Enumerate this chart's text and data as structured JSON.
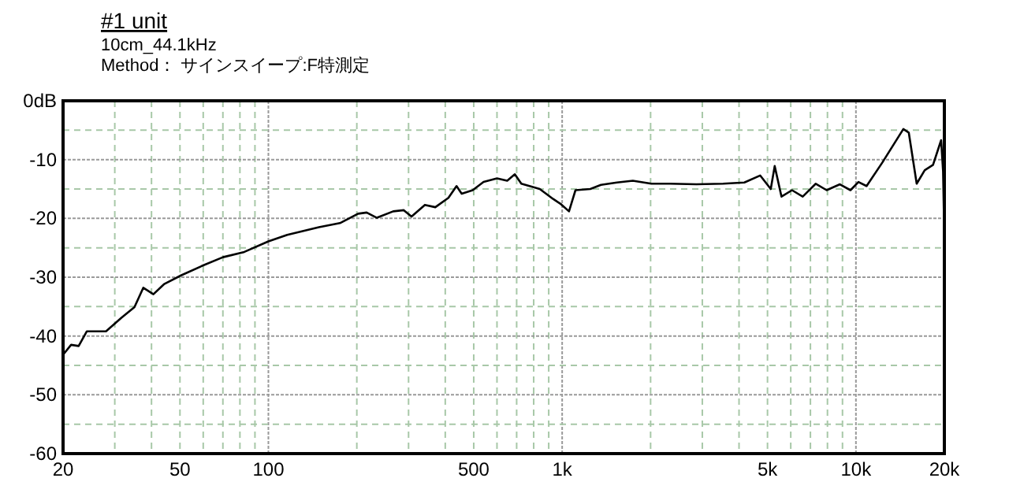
{
  "chart_data": {
    "type": "line",
    "title": "#1 unit",
    "subtitle": "10cm_44.1kHz",
    "annotations": [
      "Method： サインスイープ:F特測定"
    ],
    "log": "x",
    "grid": true,
    "xlim": [
      20,
      20000
    ],
    "ylim": [
      -60,
      0
    ],
    "xticks": [
      20,
      50,
      100,
      500,
      {
        "value": 1000,
        "label": "1k"
      },
      {
        "value": 5000,
        "label": "5k"
      },
      {
        "value": 10000,
        "label": "10k"
      },
      {
        "value": 20000,
        "label": "20k"
      }
    ],
    "yticks": [
      {
        "value": 0,
        "label": "0dB"
      },
      -10,
      -20,
      -30,
      -40,
      -50,
      -60
    ],
    "series": [
      {
        "color": "#000000",
        "marker": "none",
        "line_style": "solid",
        "x": [
          20,
          21.3,
          22.6,
          24.1,
          28,
          31.6,
          35,
          37.5,
          40.6,
          44.1,
          50.4,
          59.3,
          70,
          82.8,
          100,
          115.9,
          148.6,
          175.2,
          202,
          216,
          234,
          266,
          289,
          307,
          341,
          370,
          410,
          437,
          455,
          496,
          540,
          600,
          650,
          690,
          726,
          839,
          932,
          992,
          1055,
          1110,
          1247,
          1355,
          1536,
          1740,
          2012,
          2330,
          2864,
          3530,
          4170,
          4720,
          5130,
          5290,
          5580,
          6060,
          6590,
          7300,
          7950,
          8820,
          9580,
          10200,
          10870,
          12300,
          14500,
          15130,
          16100,
          17150,
          18300,
          19500,
          19800,
          20000
        ],
        "values": [
          -43.2,
          -41.5,
          -41.7,
          -39.2,
          -39.2,
          -36.9,
          -35.1,
          -31.8,
          -32.9,
          -31.2,
          -29.7,
          -28.1,
          -26.6,
          -25.7,
          -23.9,
          -22.8,
          -21.5,
          -20.8,
          -19.2,
          -19.0,
          -19.9,
          -18.8,
          -18.6,
          -19.7,
          -17.7,
          -18.1,
          -16.5,
          -14.5,
          -15.8,
          -15.2,
          -13.8,
          -13.2,
          -13.6,
          -12.5,
          -14.1,
          -15.0,
          -16.7,
          -17.6,
          -18.8,
          -15.2,
          -15.0,
          -14.3,
          -13.9,
          -13.6,
          -14.1,
          -14.1,
          -14.2,
          -14.1,
          -13.9,
          -12.7,
          -15.0,
          -11.1,
          -16.3,
          -15.2,
          -16.3,
          -14.1,
          -15.2,
          -14.2,
          -15.2,
          -13.8,
          -14.5,
          -10.5,
          -4.8,
          -5.4,
          -14.1,
          -11.8,
          -10.9,
          -6.7,
          -12,
          -23.5
        ]
      }
    ]
  }
}
